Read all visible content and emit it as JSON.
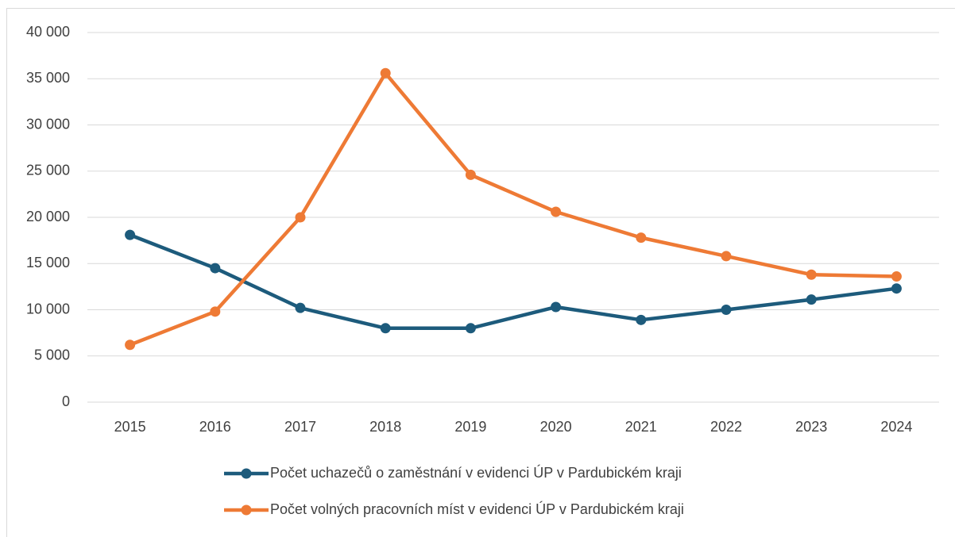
{
  "chart_data": {
    "type": "line",
    "categories": [
      "2015",
      "2016",
      "2017",
      "2018",
      "2019",
      "2020",
      "2021",
      "2022",
      "2023",
      "2024"
    ],
    "series": [
      {
        "name": "Počet uchazečů o zaměstnání v evidenci ÚP v Pardubickém kraji",
        "color": "#1d5b7c",
        "values": [
          18100,
          14500,
          10200,
          8000,
          8000,
          10300,
          8900,
          10000,
          11100,
          12300
        ]
      },
      {
        "name": "Počet volných pracovních míst v evidenci ÚP v Pardubickém kraji",
        "color": "#ee7a35",
        "values": [
          6200,
          9800,
          20000,
          35600,
          24600,
          20600,
          17800,
          15800,
          13800,
          13600
        ]
      }
    ],
    "ylim": [
      0,
      40000
    ],
    "yticks": [
      0,
      {
        "value": 5000,
        "label": "5 000"
      },
      {
        "value": 10000,
        "label": "10 000"
      },
      {
        "value": 15000,
        "label": "15 000"
      },
      {
        "value": 20000,
        "label": "20 000"
      },
      {
        "value": 25000,
        "label": "25 000"
      },
      {
        "value": 30000,
        "label": "30 000"
      },
      {
        "value": 35000,
        "label": "35 000"
      },
      {
        "value": 40000,
        "label": "40 000"
      }
    ],
    "grid": true,
    "legend": "bottom"
  }
}
